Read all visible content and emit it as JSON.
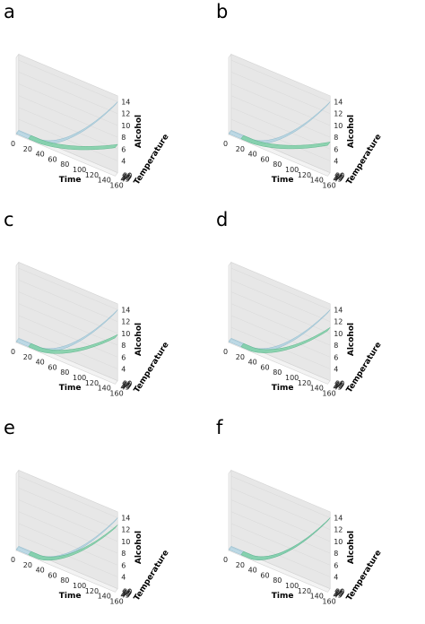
{
  "chart_data": [
    {
      "type": "surface",
      "panel_label": "a",
      "xlabel": "Time",
      "ylabel": "Temperature",
      "zlabel": "Alcohol",
      "xticks": [
        "0",
        "20",
        "40",
        "60",
        "80",
        "100",
        "120",
        "140",
        "160"
      ],
      "yticks": [
        "20",
        "25",
        "30",
        "35",
        "40",
        "45"
      ],
      "zticks": [
        "4",
        "6",
        "8",
        "10",
        "12",
        "14"
      ],
      "xlim": [
        0,
        160
      ],
      "ylim": [
        20,
        45
      ],
      "zlim": [
        2,
        15
      ],
      "surfaces": [
        {
          "role": "reference",
          "color": "#a8cfdf",
          "z_max": 14.0
        },
        {
          "role": "fitted",
          "color": "#7dcfa6",
          "z_max": 6.8,
          "t_start": 20
        }
      ]
    },
    {
      "type": "surface",
      "panel_label": "b",
      "xlabel": "Time",
      "ylabel": "Temperature",
      "zlabel": "Alcohol",
      "xticks": [
        "0",
        "20",
        "40",
        "60",
        "80",
        "100",
        "120",
        "140",
        "160"
      ],
      "yticks": [
        "20",
        "25",
        "30",
        "35",
        "40",
        "45"
      ],
      "zticks": [
        "4",
        "6",
        "8",
        "10",
        "12",
        "14"
      ],
      "xlim": [
        0,
        160
      ],
      "ylim": [
        20,
        45
      ],
      "zlim": [
        2,
        15
      ],
      "surfaces": [
        {
          "role": "reference",
          "color": "#a8cfdf",
          "z_max": 14.0
        },
        {
          "role": "fitted",
          "color": "#7dcfa6",
          "z_max": 7.2,
          "t_start": 20
        }
      ]
    },
    {
      "type": "surface",
      "panel_label": "c",
      "xlabel": "Time",
      "ylabel": "Temperature",
      "zlabel": "Alcohol",
      "xticks": [
        "0",
        "20",
        "40",
        "60",
        "80",
        "100",
        "120",
        "140",
        "160"
      ],
      "yticks": [
        "20",
        "25",
        "30",
        "35",
        "40",
        "45"
      ],
      "zticks": [
        "4",
        "6",
        "8",
        "10",
        "12",
        "14"
      ],
      "xlim": [
        0,
        160
      ],
      "ylim": [
        20,
        45
      ],
      "zlim": [
        2,
        15
      ],
      "surfaces": [
        {
          "role": "reference",
          "color": "#a8cfdf",
          "z_max": 14.0
        },
        {
          "role": "fitted",
          "color": "#7dcfa6",
          "z_max": 9.8,
          "t_start": 20
        }
      ]
    },
    {
      "type": "surface",
      "panel_label": "d",
      "xlabel": "Time",
      "ylabel": "Temperature",
      "zlabel": "Alcohol",
      "xticks": [
        "0",
        "20",
        "40",
        "60",
        "80",
        "100",
        "120",
        "140",
        "160"
      ],
      "yticks": [
        "20",
        "25",
        "30",
        "35",
        "40",
        "45"
      ],
      "zticks": [
        "4",
        "6",
        "8",
        "10",
        "12",
        "14"
      ],
      "xlim": [
        0,
        160
      ],
      "ylim": [
        20,
        45
      ],
      "zlim": [
        2,
        15
      ],
      "surfaces": [
        {
          "role": "reference",
          "color": "#a8cfdf",
          "z_max": 14.0
        },
        {
          "role": "fitted",
          "color": "#7dcfa6",
          "z_max": 11.0,
          "t_start": 20
        }
      ]
    },
    {
      "type": "surface",
      "panel_label": "e",
      "xlabel": "Time",
      "ylabel": "Temperature",
      "zlabel": "Alcohol",
      "xticks": [
        "0",
        "20",
        "40",
        "60",
        "80",
        "100",
        "120",
        "140",
        "160"
      ],
      "yticks": [
        "20",
        "25",
        "30",
        "35",
        "40",
        "45"
      ],
      "zticks": [
        "4",
        "6",
        "8",
        "10",
        "12",
        "14"
      ],
      "xlim": [
        0,
        160
      ],
      "ylim": [
        20,
        45
      ],
      "zlim": [
        2,
        15
      ],
      "surfaces": [
        {
          "role": "reference",
          "color": "#a8cfdf",
          "z_max": 14.0
        },
        {
          "role": "fitted",
          "color": "#7dcfa6",
          "z_max": 12.8,
          "t_start": 20
        }
      ]
    },
    {
      "type": "surface",
      "panel_label": "f",
      "xlabel": "Time",
      "ylabel": "Temperature",
      "zlabel": "Alcohol",
      "xticks": [
        "0",
        "20",
        "40",
        "60",
        "80",
        "100",
        "120",
        "140",
        "160"
      ],
      "yticks": [
        "20",
        "25",
        "30",
        "35",
        "40",
        "45"
      ],
      "zticks": [
        "4",
        "6",
        "8",
        "10",
        "12",
        "14"
      ],
      "xlim": [
        0,
        160
      ],
      "ylim": [
        20,
        45
      ],
      "zlim": [
        2,
        15
      ],
      "surfaces": [
        {
          "role": "reference",
          "color": "#a8cfdf",
          "z_max": 14.0
        },
        {
          "role": "fitted",
          "color": "#7dcfa6",
          "z_max": 14.0,
          "t_start": 20
        }
      ]
    }
  ]
}
